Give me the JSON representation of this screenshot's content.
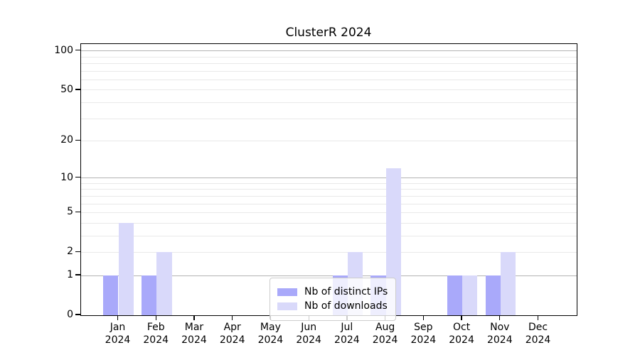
{
  "window": {
    "background": "#ffffff"
  },
  "chart_data": {
    "type": "bar",
    "title": "ClusterR 2024",
    "categories": [
      "Jan",
      "Feb",
      "Mar",
      "Apr",
      "May",
      "Jun",
      "Jul",
      "Aug",
      "Sep",
      "Oct",
      "Nov",
      "Dec"
    ],
    "year_label": "2024",
    "series": [
      {
        "name": "Nb of distinct IPs",
        "color": "#a9a9fa",
        "values": [
          1,
          1,
          0,
          0,
          0,
          0,
          1,
          1,
          0,
          1,
          1,
          0
        ]
      },
      {
        "name": "Nb of downloads",
        "color": "#d9d9fa",
        "values": [
          4,
          2,
          0,
          0,
          0,
          0,
          2,
          12,
          0,
          1,
          2,
          0
        ]
      }
    ],
    "xlabel": "",
    "ylabel": "",
    "y_scale": "log10(1+x)",
    "ylim": [
      0,
      113
    ],
    "y_ticks": [
      0,
      1,
      2,
      5,
      10,
      20,
      50,
      100
    ],
    "y_major_gridlines": [
      1,
      10,
      100
    ],
    "y_minor_gridlines": [
      2,
      3,
      4,
      5,
      6,
      7,
      8,
      9,
      20,
      30,
      40,
      50,
      60,
      70,
      80,
      90
    ],
    "grid": "horizontal",
    "legend_position": "lower center",
    "colors": {
      "axis": "#000000",
      "text": "#000000",
      "major_grid": "#b3b3b3",
      "minor_grid": "#e9e9e9",
      "legend_border": "#cccccc",
      "legend_background": "rgba(255,255,255,0.8)"
    }
  }
}
